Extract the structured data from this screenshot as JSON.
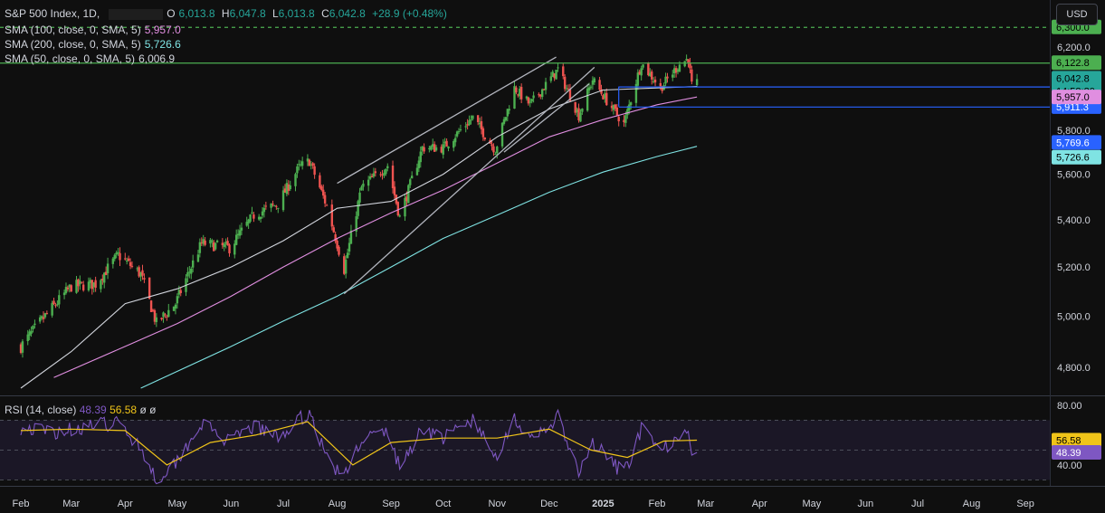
{
  "header": {
    "symbol": "S&P 500 Index, 1D,",
    "o_label": "O",
    "o": "6,013.8",
    "h_label": "H",
    "h": "6,047.8",
    "l_label": "L",
    "l": "6,013.8",
    "c_label": "C",
    "c": "6,042.8",
    "change": "+28.9 (+0.48%)"
  },
  "indicators": [
    {
      "label": "SMA (100, close, 0, SMA, 5)",
      "value": "5,957.0",
      "color": "#e08ee0"
    },
    {
      "label": "SMA (200, close, 0, SMA, 5)",
      "value": "5,726.6",
      "color": "#7fe3e3"
    },
    {
      "label": "SMA (50, close, 0, SMA, 5)",
      "value": "6,006.9",
      "color": "#d1d4dc"
    }
  ],
  "currency_button": "USD",
  "rsi_legend": {
    "label": "RSI (14, close)",
    "rsi": "48.39",
    "ma": "56.58",
    "na1": "ø",
    "na2": "ø"
  },
  "colors": {
    "background": "#0f0f0f",
    "up": "#26a69a",
    "up_bright": "#4caf50",
    "down": "#ef5350",
    "sma50": "#d1d4dc",
    "sma100": "#e08ee0",
    "sma200": "#7fe3e3",
    "rsi": "#7e57c2",
    "rsi_ma": "#f0c419",
    "hline_green": "#4caf50",
    "hline_blue": "#2962ff",
    "channel": "#b2b5be"
  },
  "chart_data": [
    {
      "type": "candlestick",
      "title": "S&P 500 Index, 1D",
      "x_axis_labels": [
        "Feb",
        "Mar",
        "Apr",
        "May",
        "Jun",
        "Jul",
        "Aug",
        "Sep",
        "Oct",
        "Nov",
        "Dec",
        "2025",
        "Feb",
        "Mar",
        "Apr",
        "May",
        "Jun",
        "Jul",
        "Aug",
        "Sep"
      ],
      "y_axis_labels": [
        "6,200.0",
        "6,000.0",
        "5,800.0",
        "5,600.0",
        "5,400.0",
        "5,200.0",
        "5,000.0",
        "4,800.0"
      ],
      "ylim": [
        4720,
        6400
      ],
      "price_path": [
        [
          "2024-02-01",
          4880
        ],
        [
          "2024-02-15",
          5000
        ],
        [
          "2024-03-01",
          5120
        ],
        [
          "2024-03-15",
          5130
        ],
        [
          "2024-03-28",
          5250
        ],
        [
          "2024-04-10",
          5170
        ],
        [
          "2024-04-19",
          4970
        ],
        [
          "2024-04-30",
          5050
        ],
        [
          "2024-05-15",
          5300
        ],
        [
          "2024-05-31",
          5280
        ],
        [
          "2024-06-14",
          5420
        ],
        [
          "2024-06-28",
          5470
        ],
        [
          "2024-07-10",
          5630
        ],
        [
          "2024-07-16",
          5660
        ],
        [
          "2024-07-26",
          5460
        ],
        [
          "2024-08-05",
          5190
        ],
        [
          "2024-08-15",
          5540
        ],
        [
          "2024-08-30",
          5640
        ],
        [
          "2024-09-06",
          5410
        ],
        [
          "2024-09-19",
          5720
        ],
        [
          "2024-10-01",
          5720
        ],
        [
          "2024-10-18",
          5860
        ],
        [
          "2024-10-31",
          5710
        ],
        [
          "2024-11-11",
          6000
        ],
        [
          "2024-11-20",
          5920
        ],
        [
          "2024-12-06",
          6090
        ],
        [
          "2024-12-18",
          5870
        ],
        [
          "2024-12-26",
          6040
        ],
        [
          "2025-01-03",
          5940
        ],
        [
          "2025-01-13",
          5830
        ],
        [
          "2025-01-23",
          6120
        ],
        [
          "2025-02-03",
          6000
        ],
        [
          "2025-02-14",
          6115
        ],
        [
          "2025-02-19",
          6144
        ],
        [
          "2025-02-21",
          6013
        ],
        [
          "2025-02-24",
          6042.8
        ]
      ],
      "sma_50_path": [
        [
          "2024-02-01",
          4720
        ],
        [
          "2024-03-01",
          4860
        ],
        [
          "2024-04-01",
          5050
        ],
        [
          "2024-05-01",
          5110
        ],
        [
          "2024-06-01",
          5200
        ],
        [
          "2024-07-01",
          5310
        ],
        [
          "2024-08-01",
          5450
        ],
        [
          "2024-09-01",
          5480
        ],
        [
          "2024-10-01",
          5600
        ],
        [
          "2024-11-01",
          5770
        ],
        [
          "2024-12-01",
          5900
        ],
        [
          "2025-01-01",
          5990
        ],
        [
          "2025-02-01",
          6000
        ],
        [
          "2025-02-24",
          6006.9
        ]
      ],
      "sma_100_path": [
        [
          "2024-02-20",
          4760
        ],
        [
          "2024-04-01",
          4880
        ],
        [
          "2024-05-01",
          4970
        ],
        [
          "2024-06-01",
          5080
        ],
        [
          "2024-07-01",
          5200
        ],
        [
          "2024-08-01",
          5320
        ],
        [
          "2024-09-01",
          5430
        ],
        [
          "2024-10-01",
          5530
        ],
        [
          "2024-11-01",
          5650
        ],
        [
          "2024-12-01",
          5770
        ],
        [
          "2025-01-01",
          5850
        ],
        [
          "2025-02-01",
          5920
        ],
        [
          "2025-02-24",
          5957.0
        ]
      ],
      "sma_200_path": [
        [
          "2024-04-10",
          4720
        ],
        [
          "2024-06-01",
          4880
        ],
        [
          "2024-07-01",
          4980
        ],
        [
          "2024-08-01",
          5080
        ],
        [
          "2024-09-01",
          5200
        ],
        [
          "2024-10-01",
          5320
        ],
        [
          "2024-11-01",
          5420
        ],
        [
          "2024-12-01",
          5520
        ],
        [
          "2025-01-01",
          5610
        ],
        [
          "2025-02-01",
          5680
        ],
        [
          "2025-02-24",
          5726.6
        ]
      ],
      "trend_lines": [
        {
          "name": "channel upper",
          "from": [
            "2024-08-01",
            5560
          ],
          "to": [
            "2024-12-05",
            6150
          ]
        },
        {
          "name": "channel lower",
          "from": [
            "2024-08-05",
            5090
          ],
          "to": [
            "2024-12-27",
            6100
          ]
        },
        {
          "name": "support",
          "from": [
            "2024-11-05",
            5700
          ],
          "to": [
            "2024-12-24",
            6020
          ]
        }
      ],
      "horizontal_levels": [
        {
          "value": 6300.0,
          "label": "6,300.0",
          "style": "dashed",
          "badge_color": "#4caf50",
          "from": "2024-01-20"
        },
        {
          "value": 6122.8,
          "label": "6,122.8",
          "style": "solid",
          "badge_color": "#4caf50",
          "from": "2024-01-20"
        },
        {
          "value": 6006.9,
          "label": "6,006.9",
          "style": "solid-blue",
          "badge_color": "#d1d4dc",
          "from": "2025-01-10"
        },
        {
          "value": 5911.3,
          "label": "5,911.3",
          "style": "solid-blue",
          "badge_color": "#2962ff",
          "from": "2025-01-10"
        }
      ],
      "price_badges": [
        {
          "value": 6042.8,
          "label": "6,042.8",
          "sub": "14:52:20",
          "color": "#26a69a"
        },
        {
          "value": 5957.0,
          "label": "5,957.0",
          "color": "#e08ee0"
        },
        {
          "value": 5769.6,
          "label": "5,769.6",
          "color": "#2962ff"
        },
        {
          "value": 5726.6,
          "label": "5,726.6",
          "color": "#7fe3e3"
        }
      ]
    },
    {
      "type": "line",
      "title": "RSI (14, close)",
      "y_axis_labels": [
        "80.00",
        "40.00"
      ],
      "ylim": [
        26,
        86
      ],
      "band": [
        30,
        70
      ],
      "rsi_path": [
        [
          "2024-02-01",
          65
        ],
        [
          "2024-02-20",
          62
        ],
        [
          "2024-03-10",
          66
        ],
        [
          "2024-03-28",
          68
        ],
        [
          "2024-04-10",
          52
        ],
        [
          "2024-04-19",
          30
        ],
        [
          "2024-04-30",
          42
        ],
        [
          "2024-05-15",
          68
        ],
        [
          "2024-05-31",
          55
        ],
        [
          "2024-06-14",
          66
        ],
        [
          "2024-06-28",
          58
        ],
        [
          "2024-07-16",
          76
        ],
        [
          "2024-07-26",
          45
        ],
        [
          "2024-08-05",
          31
        ],
        [
          "2024-08-15",
          58
        ],
        [
          "2024-08-30",
          62
        ],
        [
          "2024-09-06",
          38
        ],
        [
          "2024-09-19",
          65
        ],
        [
          "2024-10-01",
          58
        ],
        [
          "2024-10-18",
          70
        ],
        [
          "2024-10-31",
          45
        ],
        [
          "2024-11-11",
          72
        ],
        [
          "2024-11-20",
          55
        ],
        [
          "2024-12-06",
          72
        ],
        [
          "2024-12-18",
          33
        ],
        [
          "2024-12-26",
          55
        ],
        [
          "2025-01-03",
          45
        ],
        [
          "2025-01-13",
          34
        ],
        [
          "2025-01-23",
          64
        ],
        [
          "2025-02-03",
          48
        ],
        [
          "2025-02-14",
          62
        ],
        [
          "2025-02-19",
          66
        ],
        [
          "2025-02-21",
          44
        ],
        [
          "2025-02-24",
          48.39
        ]
      ],
      "rsi_ma_path": [
        [
          "2024-02-01",
          63
        ],
        [
          "2024-03-01",
          64
        ],
        [
          "2024-04-01",
          63
        ],
        [
          "2024-04-25",
          40
        ],
        [
          "2024-05-20",
          55
        ],
        [
          "2024-06-15",
          60
        ],
        [
          "2024-07-15",
          69
        ],
        [
          "2024-08-10",
          40
        ],
        [
          "2024-09-01",
          55
        ],
        [
          "2024-10-01",
          58
        ],
        [
          "2024-11-01",
          58
        ],
        [
          "2024-12-01",
          64
        ],
        [
          "2024-12-25",
          50
        ],
        [
          "2025-01-15",
          45
        ],
        [
          "2025-02-05",
          56
        ],
        [
          "2025-02-24",
          56.58
        ]
      ],
      "badges": [
        {
          "value": 56.58,
          "label": "56.58",
          "color": "#f0c419"
        },
        {
          "value": 48.39,
          "label": "48.39",
          "color": "#7e57c2"
        }
      ]
    }
  ]
}
